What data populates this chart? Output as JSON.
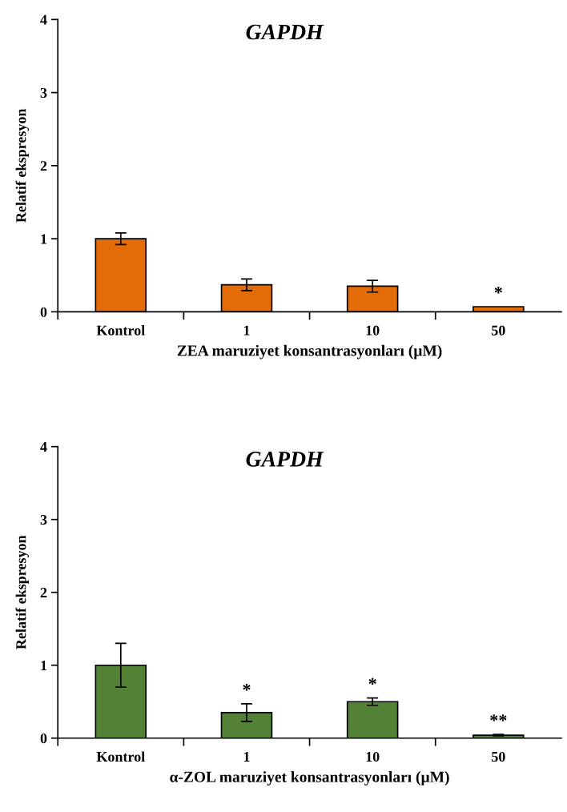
{
  "chart_data": [
    {
      "type": "bar",
      "title": "GAPDH",
      "xlabel": "ZEA maruziyet konsantrasyonları (µM)",
      "ylabel": "Relatif ekspresyon",
      "categories": [
        "Kontrol",
        "1",
        "10",
        "50"
      ],
      "series": [
        {
          "color": "#e36c09",
          "values": [
            1.0,
            0.37,
            0.35,
            0.07
          ],
          "errors": [
            0.08,
            0.08,
            0.08,
            null
          ]
        }
      ],
      "ylim": [
        0,
        4
      ],
      "yticks": [
        0,
        1,
        2,
        3,
        4
      ],
      "grid": false,
      "legend": false,
      "annotations": [
        {
          "text": "*",
          "x": "50",
          "y": 0.07
        }
      ]
    },
    {
      "type": "bar",
      "title": "GAPDH",
      "xlabel": "α-ZOL maruziyet konsantrasyonları (µM)",
      "ylabel": "Relatif ekspresyon",
      "categories": [
        "Kontrol",
        "1",
        "10",
        "50"
      ],
      "series": [
        {
          "color": "#538135",
          "values": [
            1.0,
            0.35,
            0.5,
            0.04
          ],
          "errors": [
            0.3,
            0.12,
            0.05,
            0.01
          ]
        }
      ],
      "ylim": [
        0,
        4
      ],
      "yticks": [
        0,
        1,
        2,
        3,
        4
      ],
      "grid": false,
      "legend": false,
      "annotations": [
        {
          "text": "*",
          "x": "1",
          "y": 0.47
        },
        {
          "text": "*",
          "x": "10",
          "y": 0.55
        },
        {
          "text": "**",
          "x": "50",
          "y": 0.05
        }
      ]
    }
  ]
}
